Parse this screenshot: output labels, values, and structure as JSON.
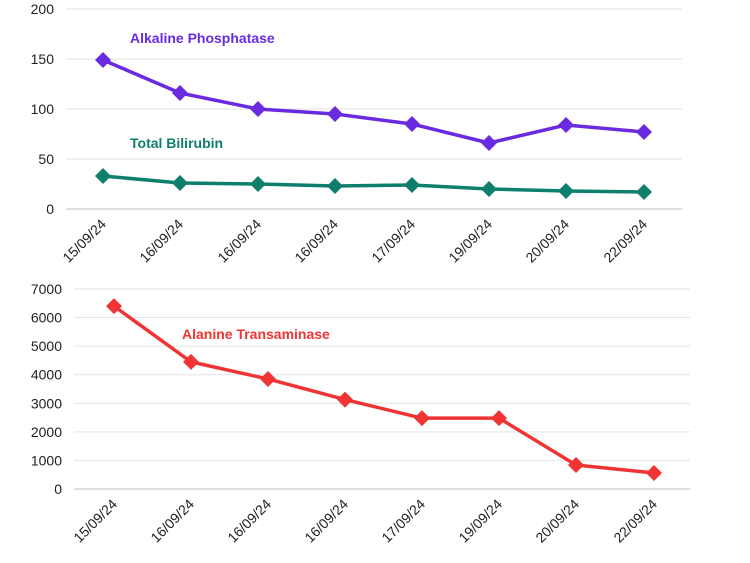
{
  "chart_data": [
    {
      "type": "line",
      "title": "",
      "xlabel": "",
      "ylabel": "",
      "categories": [
        "15/09/24",
        "16/09/24",
        "16/09/24",
        "16/09/24",
        "17/09/24",
        "19/09/24",
        "20/09/24",
        "22/09/24"
      ],
      "ylim": [
        0,
        200
      ],
      "yticks": [
        0,
        50,
        100,
        150,
        200
      ],
      "grid": true,
      "legend": "inline labels",
      "series": [
        {
          "name": "Alkaline Phosphatase",
          "color": "#6a2be0",
          "values": [
            149,
            116,
            100,
            95,
            85,
            66,
            84,
            77
          ]
        },
        {
          "name": "Total Bilirubin",
          "color": "#0f7f6d",
          "values": [
            33,
            26,
            25,
            23,
            24,
            20,
            18,
            17
          ]
        }
      ]
    },
    {
      "type": "line",
      "title": "",
      "xlabel": "",
      "ylabel": "",
      "categories": [
        "15/09/24",
        "16/09/24",
        "16/09/24",
        "16/09/24",
        "17/09/24",
        "19/09/24",
        "20/09/24",
        "22/09/24"
      ],
      "ylim": [
        0,
        7000
      ],
      "yticks": [
        0,
        1000,
        2000,
        3000,
        4000,
        5000,
        6000,
        7000
      ],
      "grid": true,
      "legend": "inline label",
      "series": [
        {
          "name": "Alanine Transaminase",
          "color": "#f03434",
          "values": [
            6400,
            4450,
            3850,
            3130,
            2480,
            2480,
            840,
            560
          ]
        }
      ]
    }
  ]
}
